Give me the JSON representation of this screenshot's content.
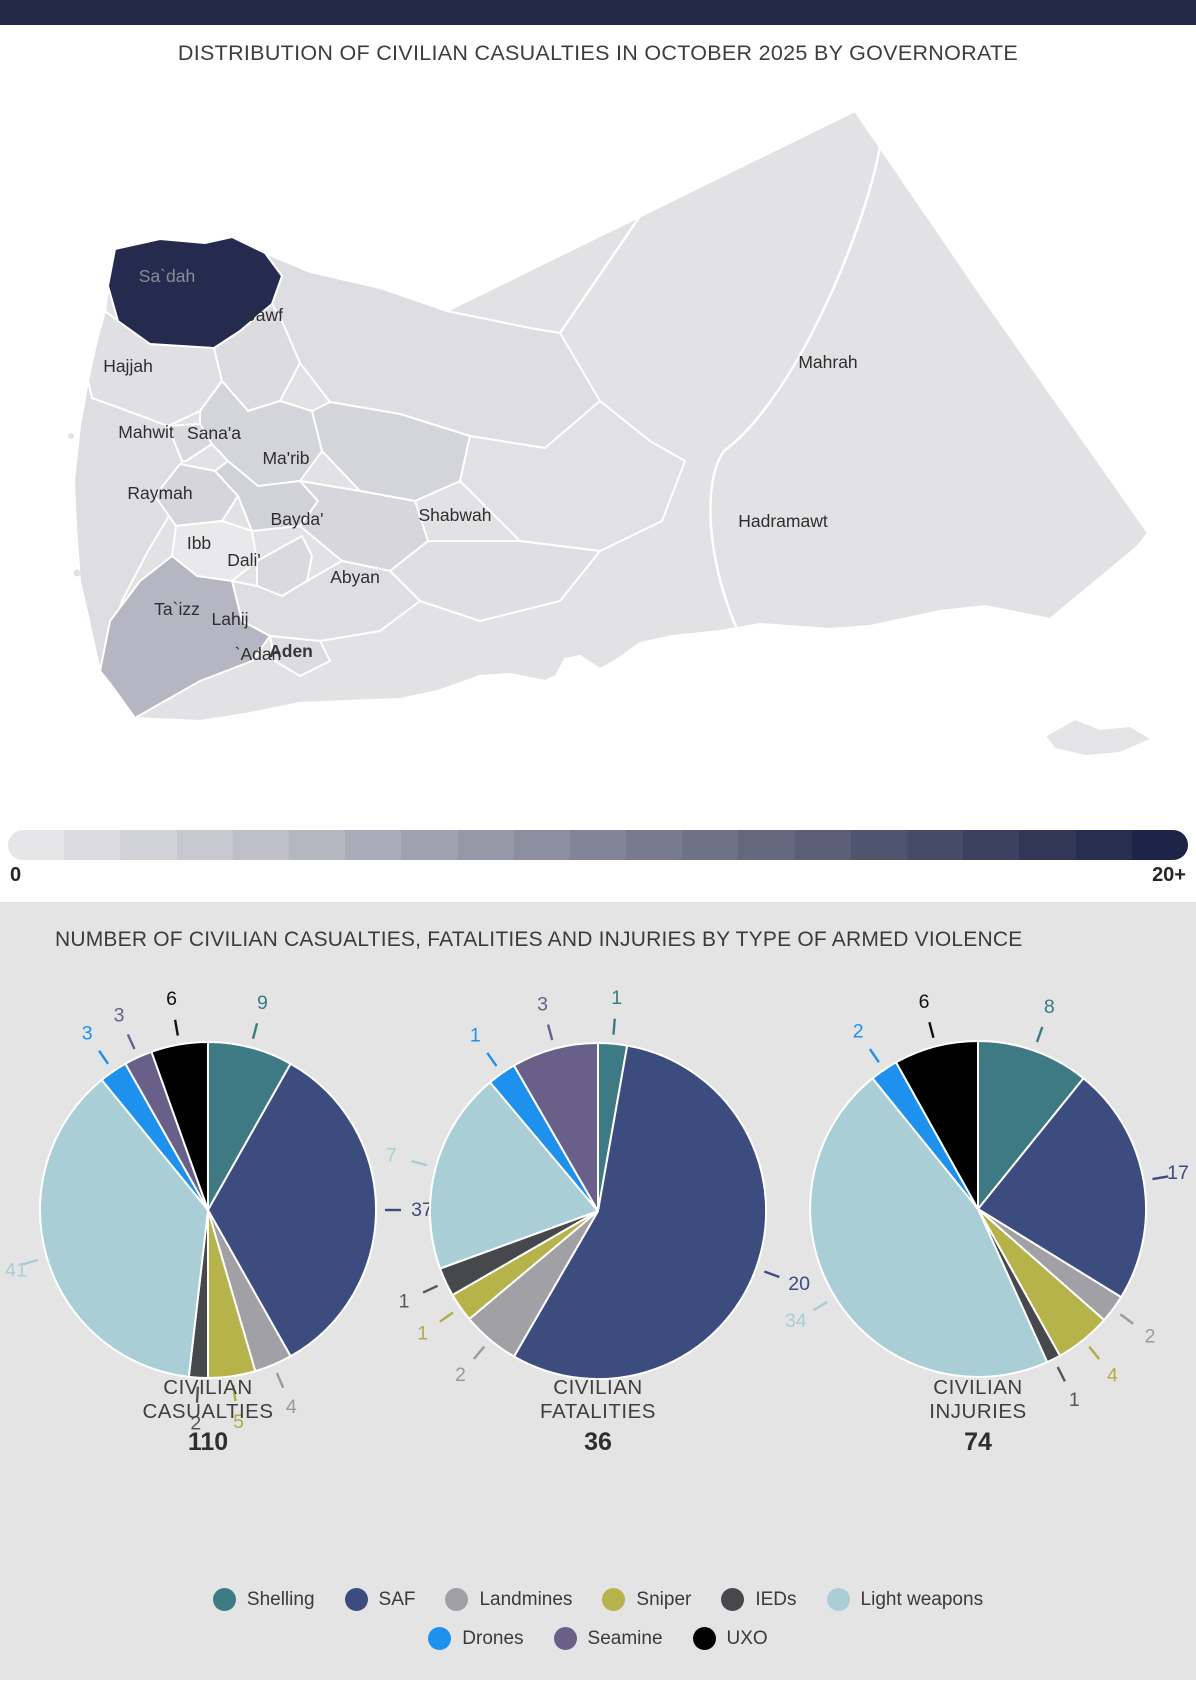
{
  "page": {
    "bg": "#ffffff",
    "panel_bg": "#e4e4e4",
    "header_bar_color": "#232947"
  },
  "map_section": {
    "title": "DISTRIBUTION OF CIVILIAN CASUALTIES IN OCTOBER 2025 BY GOVERNORATE",
    "base_fill": "#e2e2e5",
    "regions": [
      {
        "id": "hodeidah",
        "label": "",
        "fill": "#dedee2"
      },
      {
        "id": "hajjah",
        "label": "Hajjah",
        "fill": "#e0e0e4"
      },
      {
        "id": "amran",
        "label": "",
        "fill": "#dcdce0"
      },
      {
        "id": "jawf",
        "label": "Jawf",
        "fill": "#dedee2"
      },
      {
        "id": "saadah",
        "label": "Sa`dah",
        "fill": "#242b4e",
        "label_fill": "#8b8b97"
      },
      {
        "id": "mahwit",
        "label": "Mahwit",
        "fill": "#d8d8dd"
      },
      {
        "id": "sanaa",
        "label": "Sana'a",
        "fill": "#d4d4db"
      },
      {
        "id": "marib",
        "label": "Ma'rib",
        "fill": "#d4d4db"
      },
      {
        "id": "raymah",
        "label": "Raymah",
        "fill": "#d5d5db"
      },
      {
        "id": "dhamar",
        "label": "",
        "fill": "#d1d1d8"
      },
      {
        "id": "bayda",
        "label": "Bayda'",
        "fill": "#d6d6dc"
      },
      {
        "id": "ibb",
        "label": "Ibb",
        "fill": "#e9e9eb"
      },
      {
        "id": "dali",
        "label": "Dali'",
        "fill": "#dadade"
      },
      {
        "id": "shabwah",
        "label": "Shabwah",
        "fill": "#e1e1e4"
      },
      {
        "id": "abyan",
        "label": "Abyan",
        "fill": "#dfdfe3"
      },
      {
        "id": "lahij",
        "label": "Lahij",
        "fill": "#dedee2"
      },
      {
        "id": "taizz",
        "label": "Ta`izz",
        "fill": "#b6b6c3"
      },
      {
        "id": "adan",
        "label": "`Adan",
        "fill": "#dcdce0"
      },
      {
        "id": "aden-city",
        "label": "Aden",
        "fill": null,
        "bold": true,
        "label_fill": "#35353d"
      },
      {
        "id": "hadramawt",
        "label": "Hadramawt",
        "fill": null
      },
      {
        "id": "mahrah",
        "label": "Mahrah",
        "fill": null
      },
      {
        "id": "socotra",
        "label": "",
        "fill": "#e4e4e6"
      }
    ],
    "gradient_legend": {
      "min_label": "0",
      "max_label": "20+",
      "start_color": "#e6e6e8",
      "end_color": "#1e2447",
      "steps": 21
    }
  },
  "chart_data": {
    "type": "pie",
    "title": "NUMBER OF CIVILIAN CASUALTIES, FATALITIES AND INJURIES BY TYPE OF ARMED VIOLENCE",
    "categories": [
      "Shelling",
      "SAF",
      "Landmines",
      "Sniper",
      "IEDs",
      "Light weapons",
      "Drones",
      "Seamine",
      "UXO"
    ],
    "colors": [
      "#3e7a84",
      "#3c4c7f",
      "#a1a1a5",
      "#b6b34a",
      "#47484b",
      "#a9ced6",
      "#1e90ee",
      "#686089",
      "#000000"
    ],
    "label_colors": [
      "#3e7a84",
      "#3c4c7f",
      "#9a9a9e",
      "#b0ad45",
      "#565659",
      "#a9ced6",
      "#1e90ee",
      "#686089",
      "#111111"
    ],
    "legend_position": "bottom",
    "pies": [
      {
        "name": "casualties",
        "label_lines": [
          "CIVILIAN",
          "CASUALTIES"
        ],
        "total": 110,
        "values": [
          9,
          37,
          4,
          5,
          2,
          41,
          3,
          3,
          6
        ]
      },
      {
        "name": "fatalities",
        "label_lines": [
          "CIVILIAN",
          "FATALITIES"
        ],
        "total": 36,
        "values": [
          1,
          20,
          2,
          1,
          1,
          7,
          1,
          3,
          0
        ]
      },
      {
        "name": "injuries",
        "label_lines": [
          "CIVILIAN",
          "INJURIES"
        ],
        "total": 74,
        "values": [
          8,
          17,
          2,
          4,
          1,
          34,
          2,
          0,
          6
        ]
      }
    ],
    "legend_rows": [
      [
        "Shelling",
        "SAF",
        "Landmines",
        "Sniper",
        "IEDs",
        "Light weapons"
      ],
      [
        "Drones",
        "Seamine",
        "UXO"
      ]
    ]
  }
}
